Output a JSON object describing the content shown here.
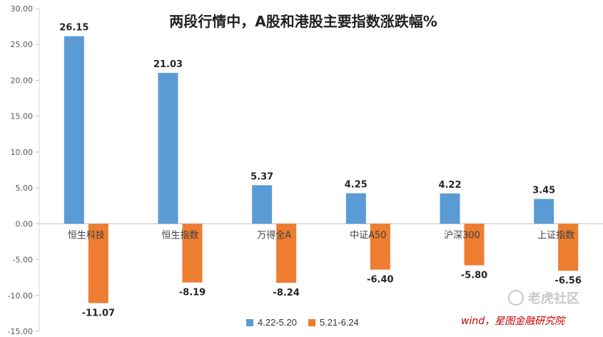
{
  "chart_data": {
    "type": "bar",
    "title": "两段行情中，A股和港股主要指数涨跌幅%",
    "categories": [
      "恒生科技",
      "恒生指数",
      "万得全A",
      "中证A50",
      "沪深300",
      "上证指数"
    ],
    "series": [
      {
        "name": "4.22-5.20",
        "values": [
          26.15,
          21.03,
          5.37,
          4.25,
          4.22,
          3.45
        ]
      },
      {
        "name": "5.21-6.24",
        "values": [
          -11.07,
          -8.19,
          -8.24,
          -6.4,
          -5.8,
          -6.56
        ]
      }
    ],
    "value_labels": [
      [
        "26.15",
        "21.03",
        "5.37",
        "4.25",
        "4.22",
        "3.45"
      ],
      [
        "-11.07",
        "-8.19",
        "-8.24",
        "-6.40",
        "-5.80",
        "-6.56"
      ]
    ],
    "ylim": [
      -15,
      30
    ],
    "yticks": [
      30,
      25,
      20,
      15,
      10,
      5,
      0,
      -5,
      -10,
      -15
    ],
    "ytick_labels": [
      "30.00",
      "25.00",
      "20.00",
      "15.00",
      "10.00",
      "5.00",
      "0.00",
      "-5.00",
      "-10.00",
      "-15.00"
    ],
    "grid": false,
    "legend_position": "bottom",
    "colors": [
      "#5B9BD5",
      "#ED7D31"
    ]
  },
  "source_note": "wind，星图金融研究院",
  "watermark": "老虎社区"
}
